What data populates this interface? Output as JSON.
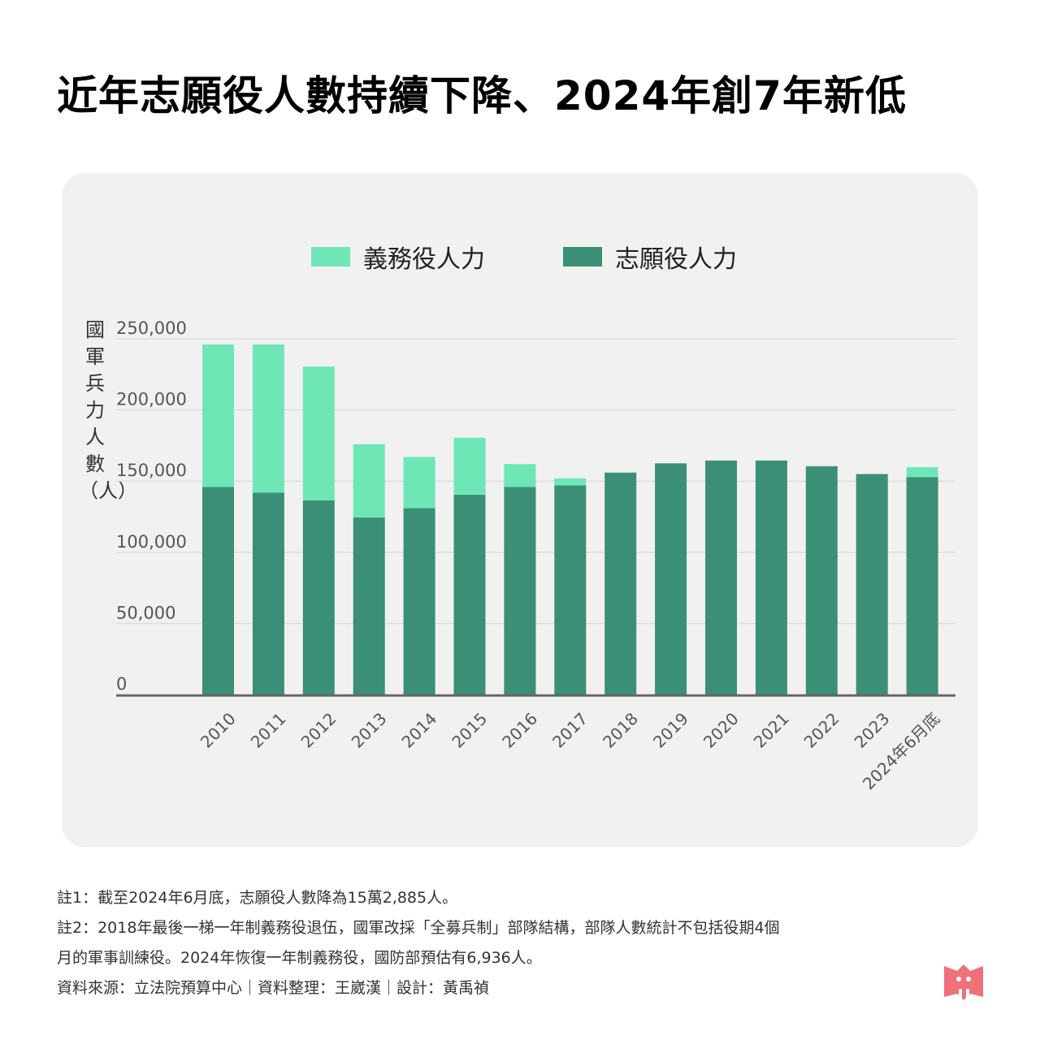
{
  "title": "近年志願役人數持續下降、2024年創7年新低",
  "legend": [
    {
      "label": "義務役人力",
      "color": "#6ee6b6"
    },
    {
      "label": "志願役人力",
      "color": "#3b8f77"
    }
  ],
  "chart_data": {
    "type": "bar",
    "stacked": true,
    "ylabel": "國軍兵力人數（人）",
    "ylim": [
      0,
      250000
    ],
    "yticks": [
      0,
      50000,
      100000,
      150000,
      200000,
      250000
    ],
    "ytick_labels": [
      "0",
      "50,000",
      "100,000",
      "150,000",
      "200,000",
      "250,000"
    ],
    "grid": true,
    "legend_position": "top-center",
    "categories": [
      "2010",
      "2011",
      "2012",
      "2013",
      "2014",
      "2015",
      "2016",
      "2017",
      "2018",
      "2019",
      "2020",
      "2021",
      "2022",
      "2023",
      "2024年6月底"
    ],
    "series": [
      {
        "name": "志願役人力",
        "color": "#3b8f77",
        "values": [
          146000,
          142000,
          136500,
          124500,
          131000,
          140500,
          146000,
          147000,
          156000,
          162500,
          164500,
          164500,
          160500,
          155000,
          152885
        ]
      },
      {
        "name": "義務役人力",
        "color": "#6ee6b6",
        "values": [
          100000,
          104000,
          94000,
          51500,
          36000,
          40000,
          16000,
          5000,
          0,
          0,
          0,
          0,
          0,
          0,
          6936
        ]
      }
    ]
  },
  "notes": [
    "註1：截至2024年6月底，志願役人數降為15萬2,885人。",
    "註2：2018年最後一梯一年制義務役退伍，國軍改採「全募兵制」部隊結構，部隊人數統計不包括役期4個",
    "月的軍事訓練役。2024年恢復一年制義務役，國防部預估有6,936人。",
    "資料來源：立法院預算中心｜資料整理：王崴漢｜設計：黃禹禎"
  ],
  "colors": {
    "panel": "#f1f1f1",
    "axis": "#666666",
    "grid": "#dddddd",
    "logo": "#f0707a"
  },
  "logo_icon": "book-mascot-logo"
}
